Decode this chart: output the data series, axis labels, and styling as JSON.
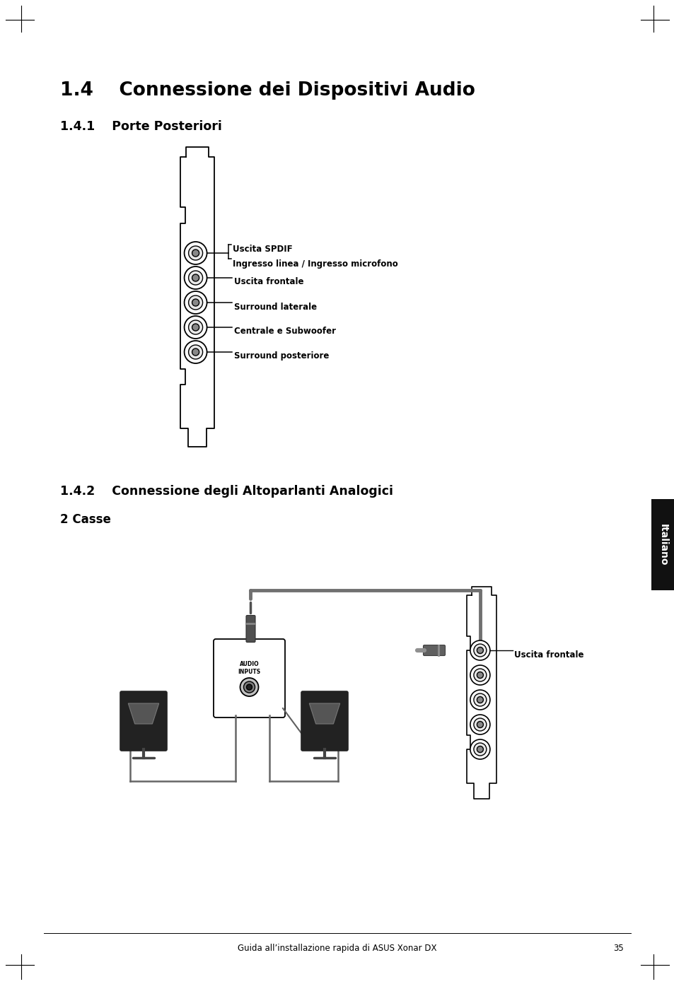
{
  "title_14": "1.4    Connessione dei Dispositivi Audio",
  "subtitle_141": "1.4.1    Porte Posteriori",
  "subtitle_142": "1.4.2    Connessione degli Altoparlanti Analogici",
  "subtitle_2casse": "2 Casse",
  "port_labels": [
    "Uscita SPDIF",
    "Ingresso linea / Ingresso microfono",
    "Uscita frontale",
    "Surround laterale",
    "Centrale e Subwoofer",
    "Surround posteriore"
  ],
  "port2_label": "Uscita frontale",
  "footer_text": "Guida all’installazione rapida di ASUS Xonar DX",
  "footer_page": "35",
  "tab_text": "Italiano",
  "bg_color": "#ffffff",
  "text_color": "#000000"
}
